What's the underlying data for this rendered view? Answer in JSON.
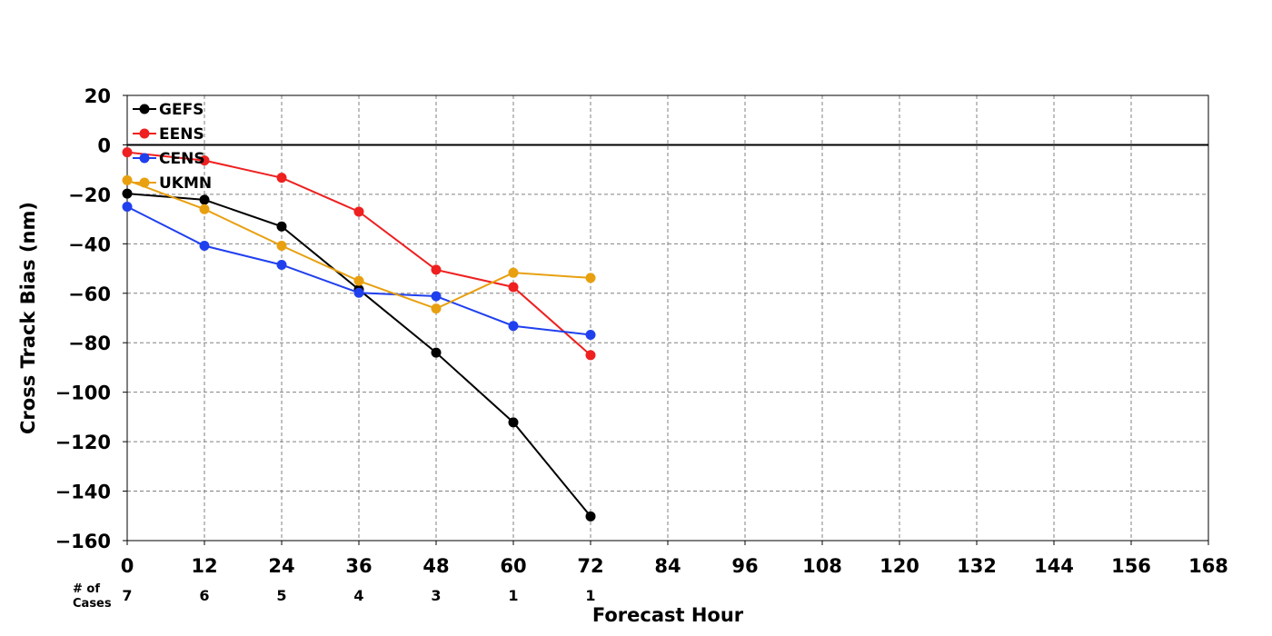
{
  "chart_data": {
    "type": "line",
    "xlabel": "Forecast Hour",
    "ylabel": "Cross Track Bias (nm)",
    "xlim": [
      0,
      168
    ],
    "ylim": [
      -160,
      20
    ],
    "x_ticks": [
      0,
      12,
      24,
      36,
      48,
      60,
      72,
      84,
      96,
      108,
      120,
      132,
      144,
      156,
      168
    ],
    "y_ticks": [
      20,
      0,
      -20,
      -40,
      -60,
      -80,
      -100,
      -120,
      -140,
      -160
    ],
    "grid": true,
    "legend_position": "top-left",
    "cases_label_line1": "# of",
    "cases_label_line2": "Cases",
    "cases": [
      {
        "x": 0,
        "label": "7"
      },
      {
        "x": 12,
        "label": "6"
      },
      {
        "x": 24,
        "label": "5"
      },
      {
        "x": 36,
        "label": "4"
      },
      {
        "x": 48,
        "label": "3"
      },
      {
        "x": 60,
        "label": "1"
      },
      {
        "x": 72,
        "label": "1"
      }
    ],
    "series": [
      {
        "name": "GEFS",
        "color": "#000000",
        "x": [
          0,
          12,
          24,
          36,
          48,
          60,
          72
        ],
        "values": [
          -19.7,
          -22.2,
          -33.0,
          -58.5,
          -84.0,
          -112.2,
          -150.2
        ]
      },
      {
        "name": "EENS",
        "color": "#ee2020",
        "x": [
          0,
          12,
          24,
          36,
          48,
          60,
          72
        ],
        "values": [
          -3.0,
          -6.3,
          -13.3,
          -27.0,
          -50.5,
          -57.5,
          -85.0
        ]
      },
      {
        "name": "CENS",
        "color": "#2040ee",
        "x": [
          0,
          12,
          24,
          36,
          48,
          60,
          72
        ],
        "values": [
          -25.0,
          -40.8,
          -48.5,
          -59.8,
          -61.2,
          -73.2,
          -76.8
        ]
      },
      {
        "name": "UKMN",
        "color": "#e8a010",
        "x": [
          0,
          12,
          24,
          36,
          48,
          60,
          72
        ],
        "values": [
          -14.3,
          -26.0,
          -40.8,
          -55.0,
          -66.2,
          -51.7,
          -53.8
        ]
      }
    ]
  }
}
